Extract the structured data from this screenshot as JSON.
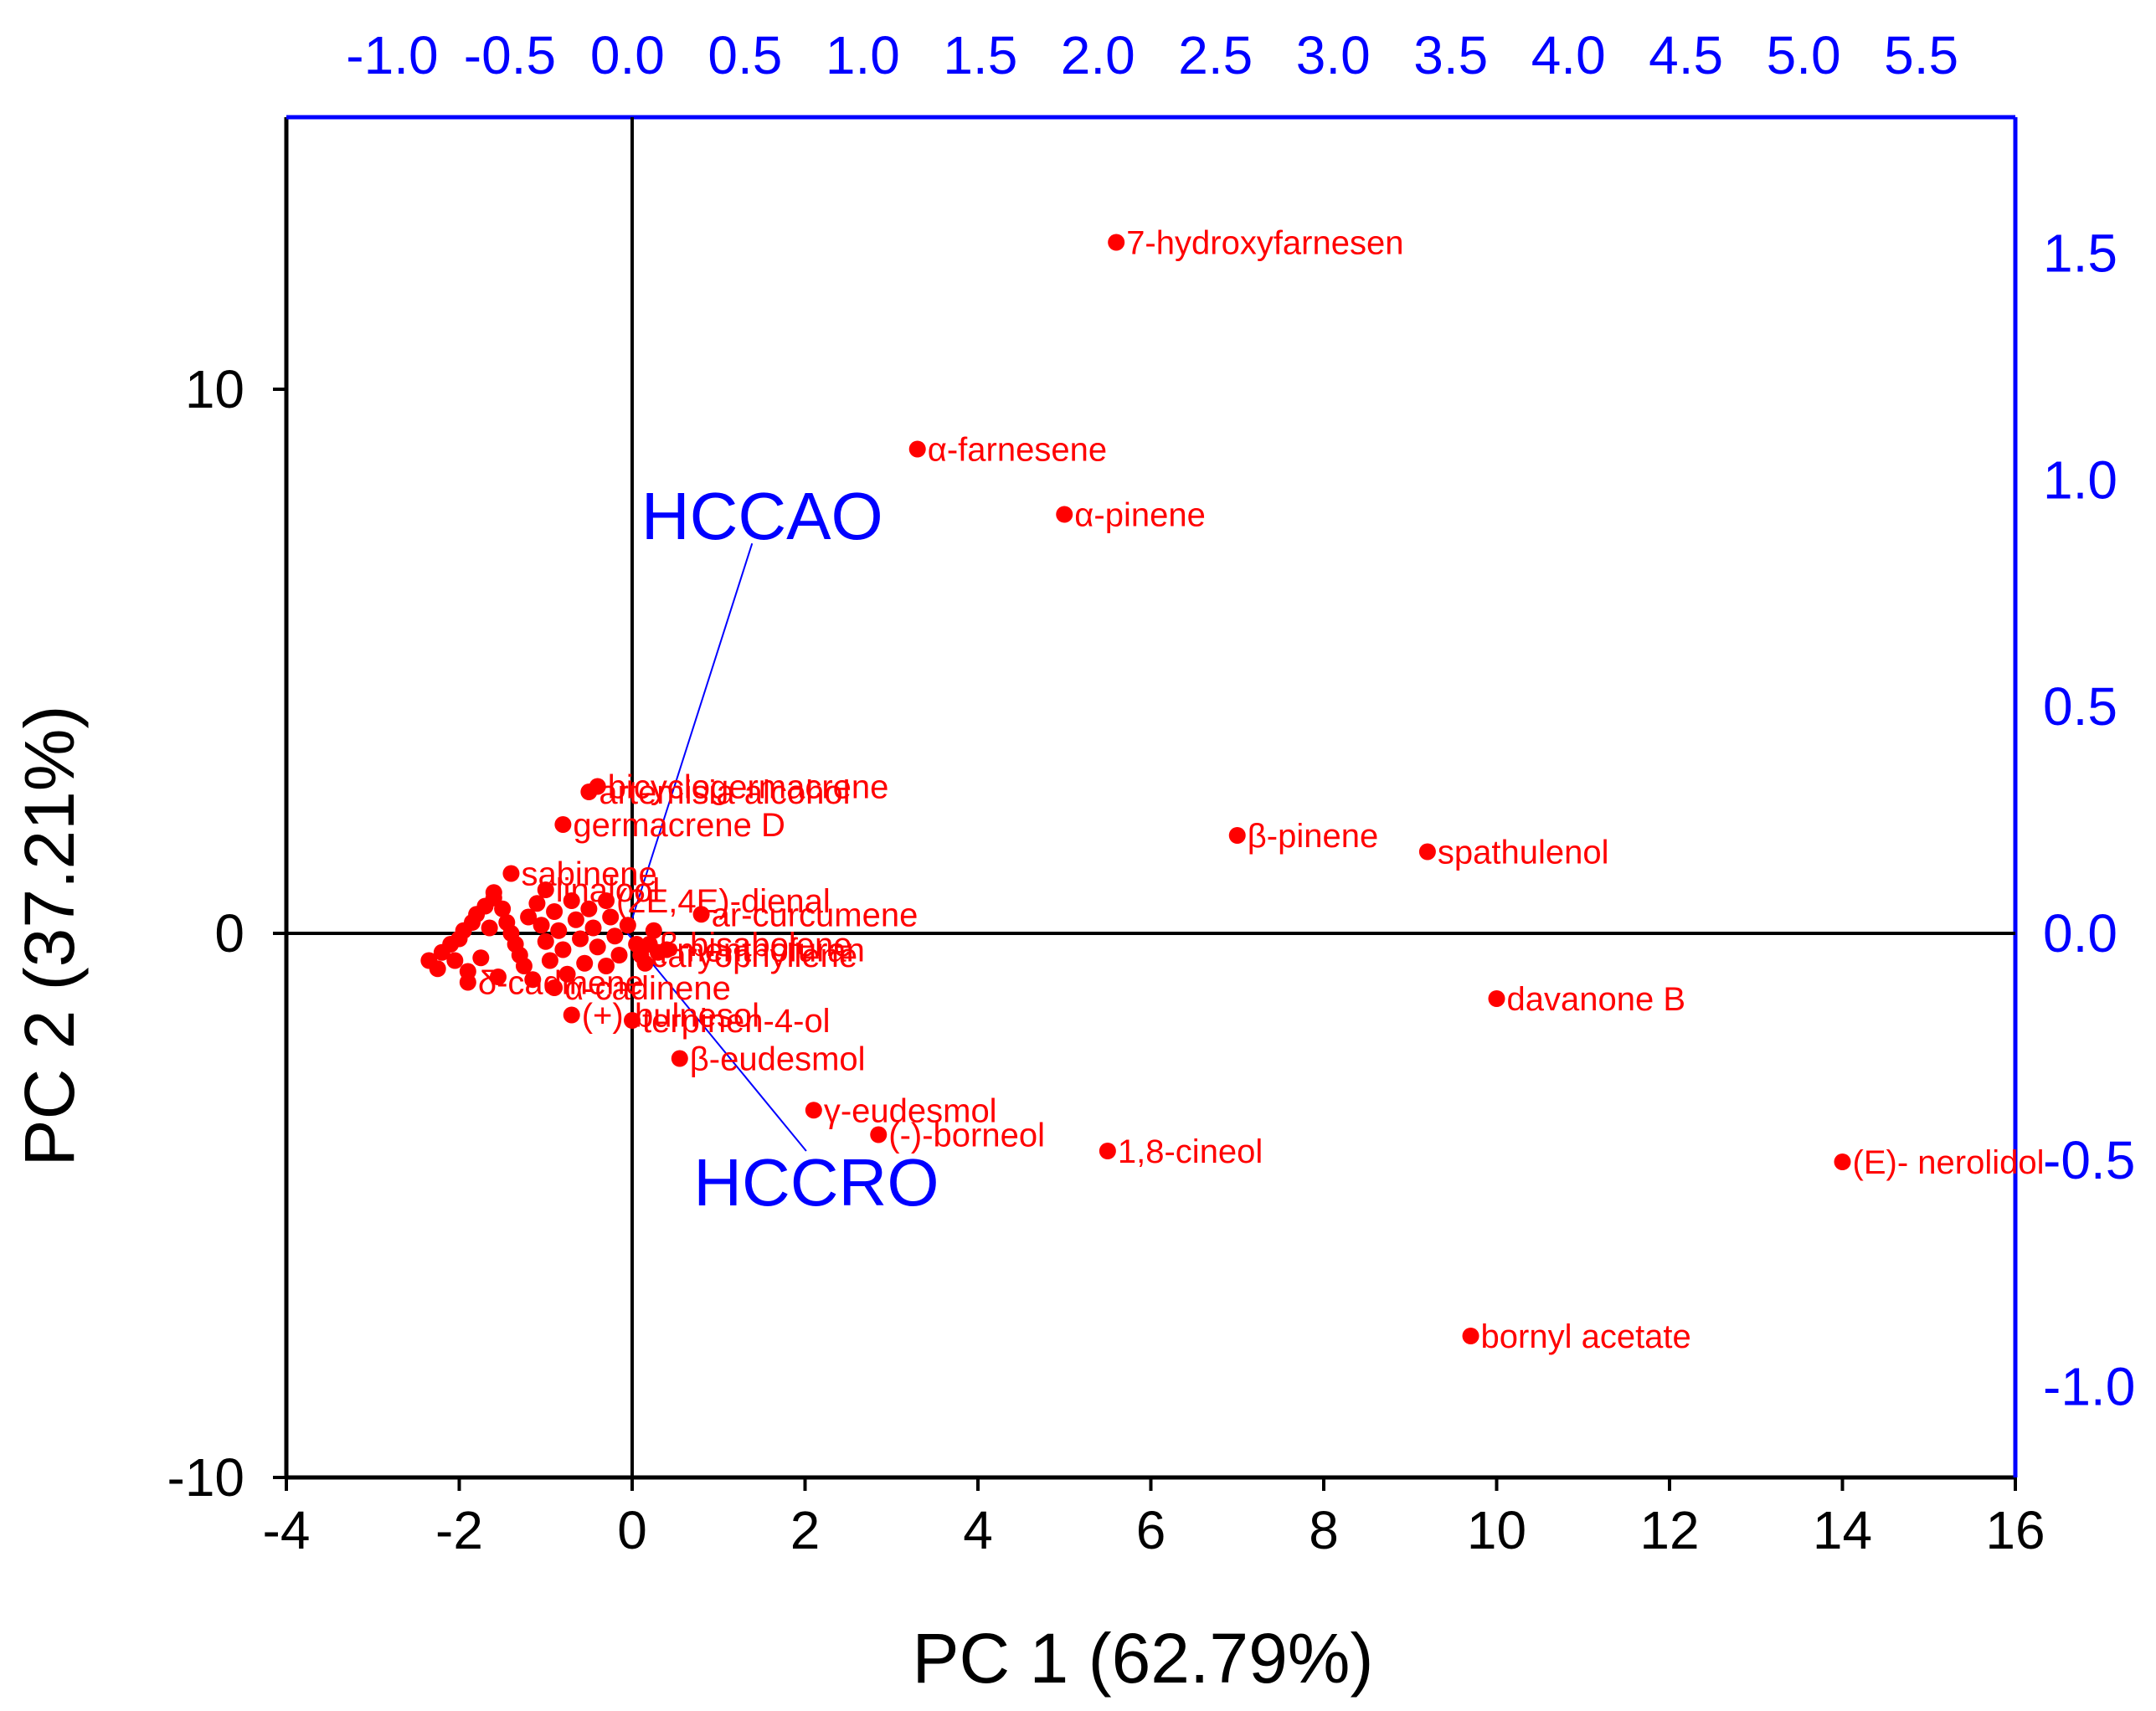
{
  "chart_data": {
    "type": "scatter",
    "subtype": "biplot",
    "title": "",
    "xlabel": "PC 1 (62.79%)",
    "ylabel": "PC 2 (37.21%)",
    "xlim": [
      -4,
      16
    ],
    "ylim": [
      -10,
      15
    ],
    "x_ticks": [
      -4,
      -2,
      0,
      2,
      4,
      6,
      8,
      10,
      12,
      14,
      16
    ],
    "y_ticks": [
      -10,
      0,
      10
    ],
    "secondary_xlim": [
      -1.45,
      5.9
    ],
    "secondary_ylim": [
      -1.2,
      1.8
    ],
    "secondary_x_ticks": [
      "-1.0",
      "-0.5",
      "0.0",
      "0.5",
      "1.0",
      "1.5",
      "2.0",
      "2.5",
      "3.0",
      "3.5",
      "4.0",
      "4.5",
      "5.0",
      "5.5"
    ],
    "secondary_y_ticks": [
      "-1.0",
      "-0.5",
      "0.0",
      "0.5",
      "1.0",
      "1.5"
    ],
    "point_color": "#ff0000",
    "loading_color": "#0000ff",
    "axis_color": "#000000",
    "points": [
      {
        "label": "7-hydroxyfarnesen",
        "x": 5.6,
        "y": 12.7
      },
      {
        "label": "α-farnesene",
        "x": 3.3,
        "y": 8.9
      },
      {
        "label": "α-pinene",
        "x": 5.0,
        "y": 7.7
      },
      {
        "label": "bicyclogermacrene",
        "x": -0.4,
        "y": 2.7
      },
      {
        "label": "artemisia alcohol",
        "x": -0.5,
        "y": 2.6
      },
      {
        "label": "germacrene D",
        "x": -0.8,
        "y": 2.0
      },
      {
        "label": "β-pinene",
        "x": 7.0,
        "y": 1.8
      },
      {
        "label": "spathulenol",
        "x": 9.2,
        "y": 1.5
      },
      {
        "label": "sabinene",
        "x": -1.4,
        "y": 1.1
      },
      {
        "label": "linalool",
        "x": -1.0,
        "y": 0.8
      },
      {
        "label": "(2E,4E)-dienal",
        "x": -0.3,
        "y": 0.6
      },
      {
        "label": "ar-curcumene",
        "x": 0.8,
        "y": 0.35
      },
      {
        "label": "menthofuran",
        "x": 0.4,
        "y": -0.3
      },
      {
        "label": "β-bisabolene",
        "x": 0.2,
        "y": -0.2
      },
      {
        "label": "caryophyllene",
        "x": 0.1,
        "y": -0.4
      },
      {
        "label": "α-cadinene",
        "x": -0.9,
        "y": -1.0
      },
      {
        "label": "δ-cadinene",
        "x": -1.9,
        "y": -0.9
      },
      {
        "label": "davanone B",
        "x": 10.0,
        "y": -1.2
      },
      {
        "label": "(+)-bulnesol",
        "x": -0.7,
        "y": -1.5
      },
      {
        "label": "terpinen-4-ol",
        "x": 0.0,
        "y": -1.6
      },
      {
        "label": "β-eudesmol",
        "x": 0.55,
        "y": -2.3
      },
      {
        "label": "γ-eudesmol",
        "x": 2.1,
        "y": -3.25
      },
      {
        "label": "(-)-borneol",
        "x": 2.85,
        "y": -3.7
      },
      {
        "label": "1,8-cineol",
        "x": 5.5,
        "y": -4.0
      },
      {
        "label": "(E)- nerolidol",
        "x": 14.0,
        "y": -4.2
      },
      {
        "label": "bornyl acetate",
        "x": 9.7,
        "y": -7.4
      }
    ],
    "cluster_points": [
      {
        "x": -2.35,
        "y": -0.5
      },
      {
        "x": -2.2,
        "y": -0.35
      },
      {
        "x": -2.1,
        "y": -0.2
      },
      {
        "x": -2.0,
        "y": -0.1
      },
      {
        "x": -1.95,
        "y": 0.05
      },
      {
        "x": -1.85,
        "y": 0.2
      },
      {
        "x": -1.8,
        "y": 0.35
      },
      {
        "x": -1.7,
        "y": 0.5
      },
      {
        "x": -1.6,
        "y": 0.65
      },
      {
        "x": -1.6,
        "y": 0.75
      },
      {
        "x": -1.5,
        "y": 0.45
      },
      {
        "x": -1.45,
        "y": 0.2
      },
      {
        "x": -1.4,
        "y": 0.0
      },
      {
        "x": -1.35,
        "y": -0.2
      },
      {
        "x": -1.3,
        "y": -0.4
      },
      {
        "x": -1.25,
        "y": -0.6
      },
      {
        "x": -1.2,
        "y": 0.3
      },
      {
        "x": -1.1,
        "y": 0.55
      },
      {
        "x": -1.05,
        "y": 0.15
      },
      {
        "x": -1.0,
        "y": -0.15
      },
      {
        "x": -0.95,
        "y": -0.5
      },
      {
        "x": -0.9,
        "y": 0.4
      },
      {
        "x": -0.85,
        "y": 0.05
      },
      {
        "x": -0.8,
        "y": -0.3
      },
      {
        "x": -0.7,
        "y": 0.6
      },
      {
        "x": -0.65,
        "y": 0.25
      },
      {
        "x": -0.6,
        "y": -0.1
      },
      {
        "x": -0.55,
        "y": -0.55
      },
      {
        "x": -0.5,
        "y": 0.45
      },
      {
        "x": -0.45,
        "y": 0.1
      },
      {
        "x": -0.4,
        "y": -0.25
      },
      {
        "x": -0.3,
        "y": -0.6
      },
      {
        "x": -0.25,
        "y": 0.3
      },
      {
        "x": -0.2,
        "y": -0.05
      },
      {
        "x": -0.15,
        "y": -0.4
      },
      {
        "x": -0.05,
        "y": 0.15
      },
      {
        "x": 0.05,
        "y": -0.2
      },
      {
        "x": 0.15,
        "y": -0.55
      },
      {
        "x": 0.25,
        "y": 0.05
      },
      {
        "x": 0.3,
        "y": -0.35
      },
      {
        "x": -2.25,
        "y": -0.65
      },
      {
        "x": -2.05,
        "y": -0.5
      },
      {
        "x": -1.9,
        "y": -0.7
      },
      {
        "x": -1.75,
        "y": -0.45
      },
      {
        "x": -1.55,
        "y": -0.8
      },
      {
        "x": -1.65,
        "y": 0.1
      },
      {
        "x": -1.15,
        "y": -0.85
      },
      {
        "x": -0.75,
        "y": -0.75
      }
    ],
    "loadings": [
      {
        "label": "HCCAO",
        "x": 0.53,
        "y": 0.86
      },
      {
        "label": "HCCRO",
        "x": 0.76,
        "y": -0.48
      }
    ]
  }
}
